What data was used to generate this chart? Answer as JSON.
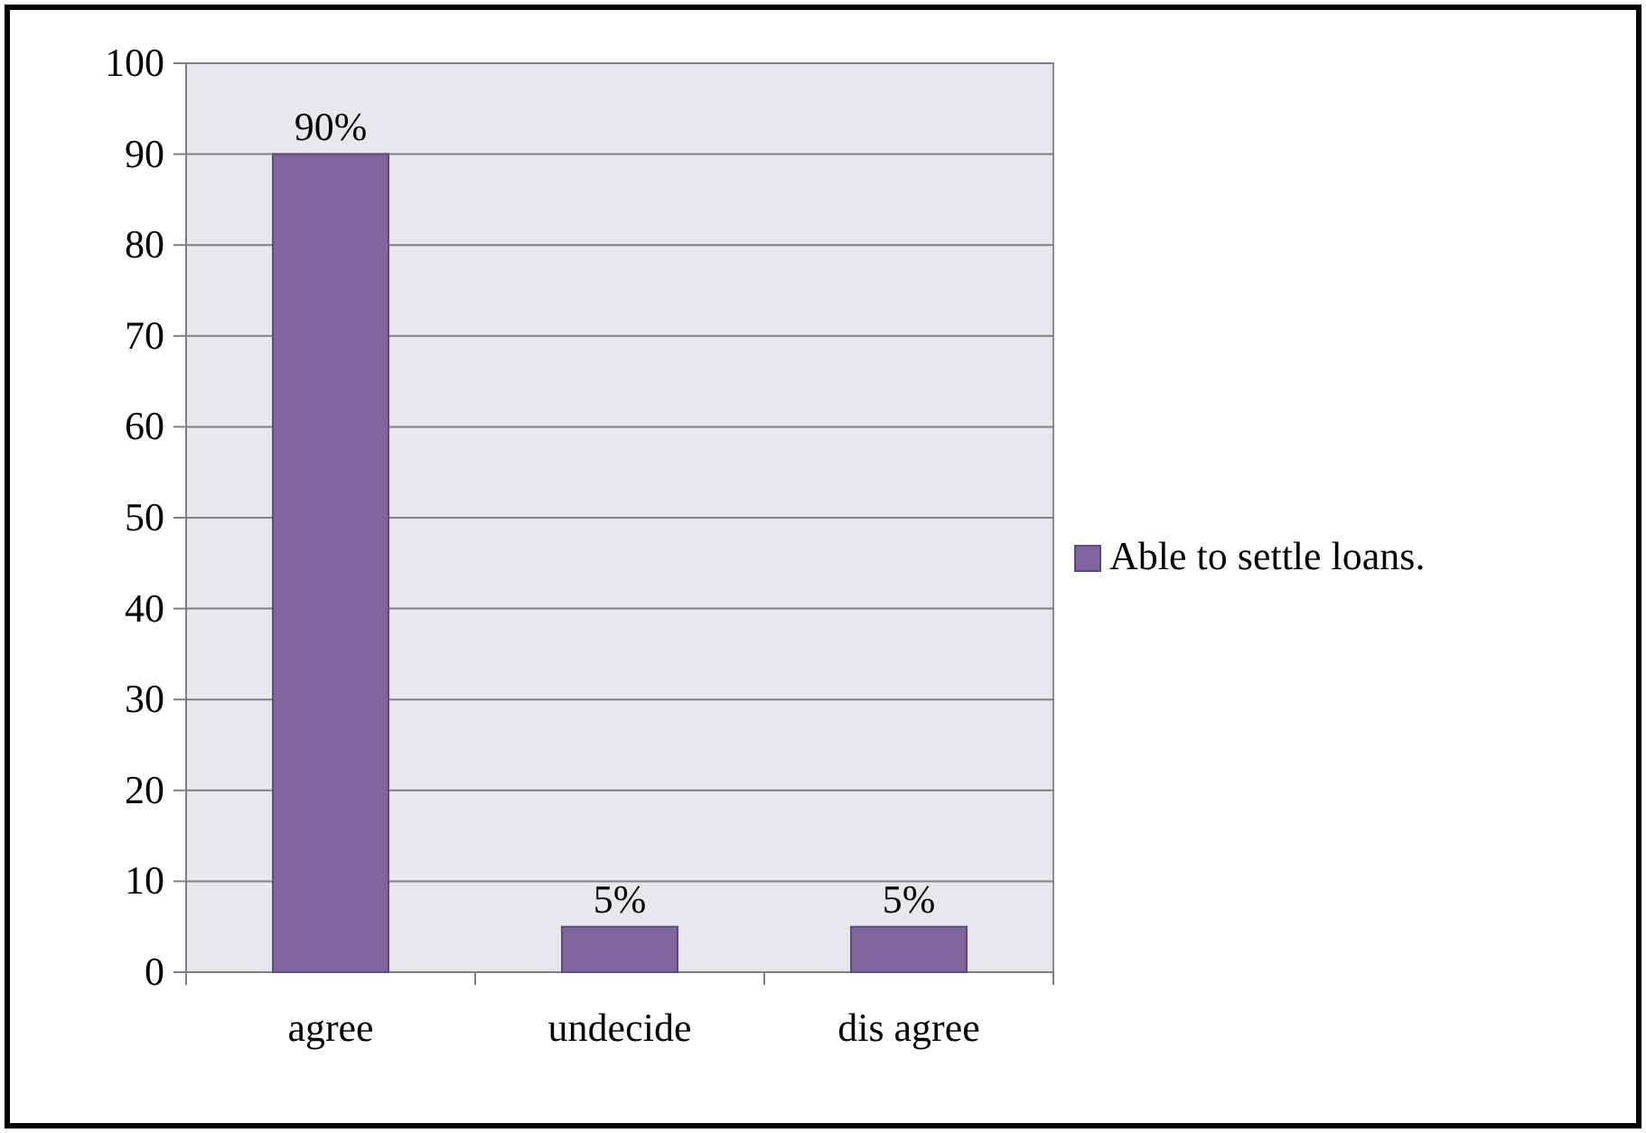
{
  "chart_data": {
    "type": "bar",
    "categories": [
      "agree",
      "undecide",
      "dis agree"
    ],
    "series": [
      {
        "name": "Able to settle loans.",
        "color": "#8064a2",
        "values": [
          90,
          5,
          5
        ],
        "value_labels": [
          "90%",
          "5%",
          "5%"
        ]
      }
    ],
    "ylim": [
      0,
      100
    ],
    "yticks": [
      0,
      10,
      20,
      30,
      40,
      50,
      60,
      70,
      80,
      90,
      100
    ],
    "grid": "y",
    "legend": "right"
  }
}
